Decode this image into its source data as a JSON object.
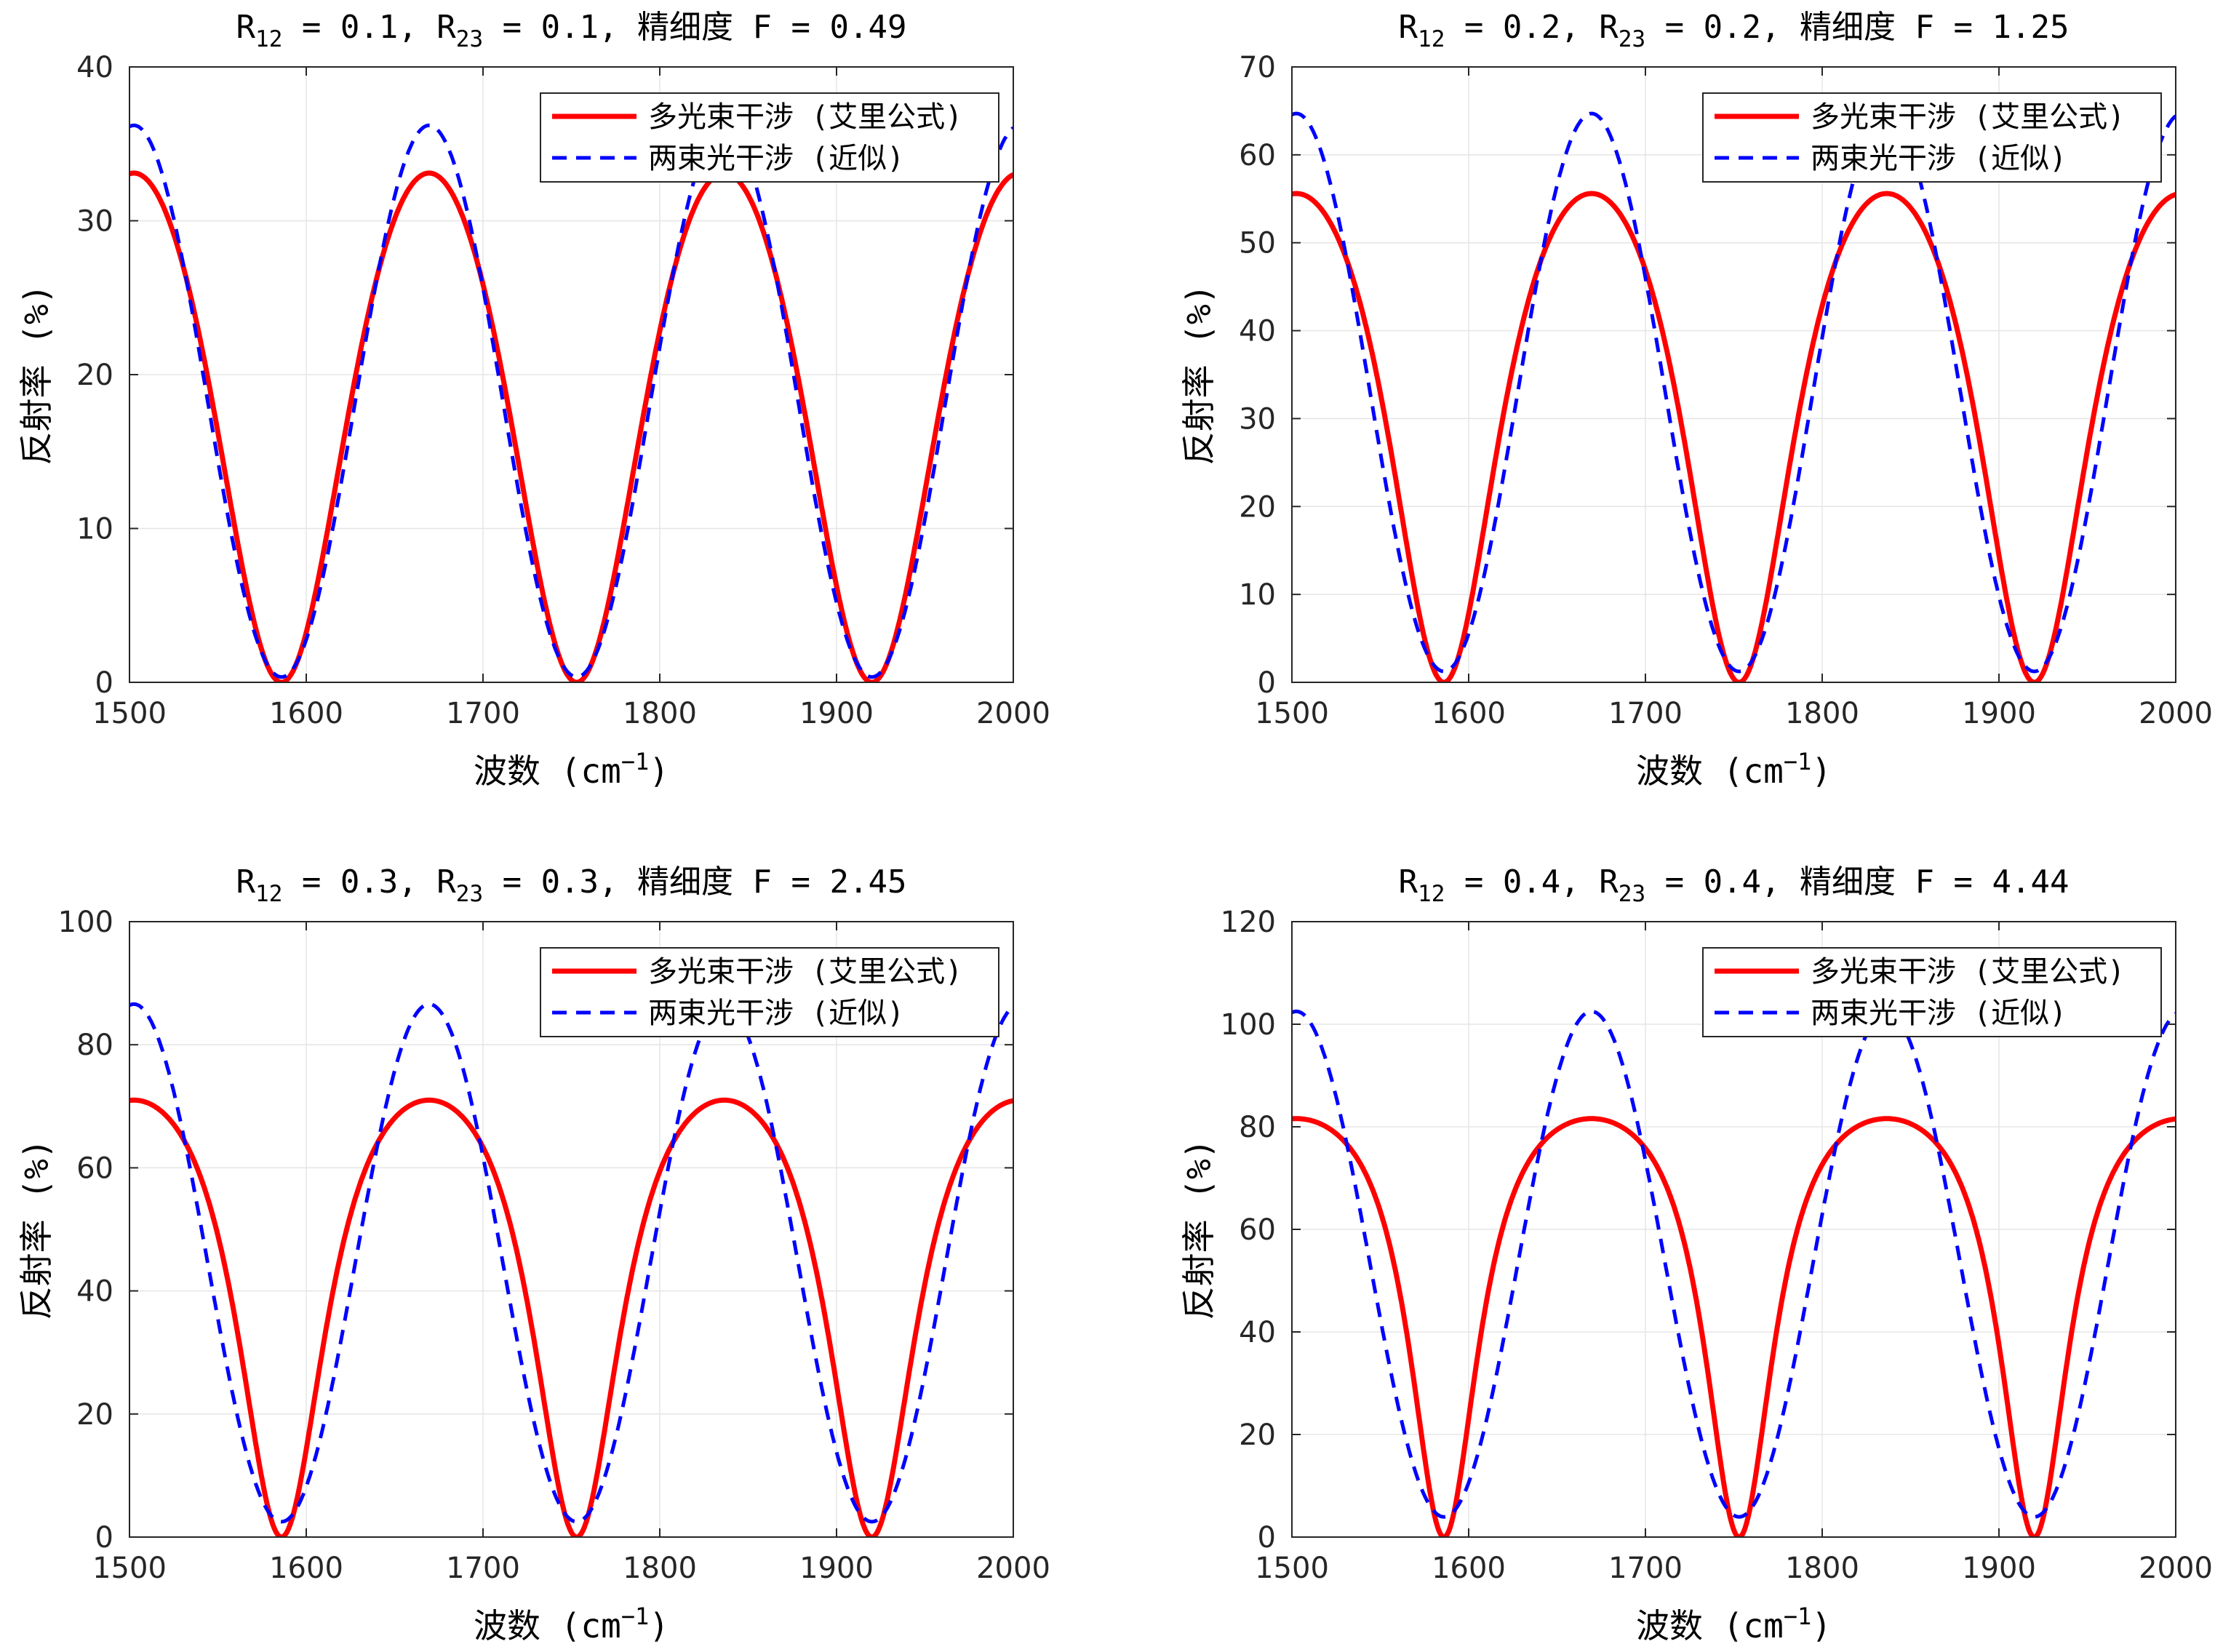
{
  "colors": {
    "multi": "#ff0000",
    "two": "#0000ff",
    "grid": "#e5e5e5",
    "axis": "#262626"
  },
  "chart_data": [
    {
      "type": "line",
      "title": {
        "part1": "R",
        "sub1": "12",
        "part2": " = 0.1, R",
        "sub2": "23",
        "part3": " = 0.1, 精细度 F = 0.49"
      },
      "R12": 0.1,
      "R23": 0.1,
      "finesse": 0.49,
      "xlabel": {
        "main": "波数 (cm",
        "sup": "−1",
        "end": ")"
      },
      "ylabel": "反射率 (%)",
      "xlim": [
        1500,
        2000
      ],
      "ylim": [
        0,
        40
      ],
      "xticks": [
        1500,
        1600,
        1700,
        1800,
        1900,
        2000
      ],
      "yticks": [
        0,
        10,
        20,
        30,
        40
      ],
      "grid": true,
      "legend": "top-right",
      "series": [
        {
          "name": "多光束干涉 (艾里公式)",
          "style": "solid",
          "peak": 33.1,
          "model": "airy"
        },
        {
          "name": "两束光干涉 (近似)",
          "style": "dashed",
          "peak": 36.2,
          "model": "twobeam"
        }
      ],
      "minima": [
        1586,
        1753,
        1920
      ]
    },
    {
      "type": "line",
      "title": {
        "part1": "R",
        "sub1": "12",
        "part2": " = 0.2, R",
        "sub2": "23",
        "part3": " = 0.2, 精细度 F = 1.25"
      },
      "R12": 0.2,
      "R23": 0.2,
      "finesse": 1.25,
      "xlabel": {
        "main": "波数 (cm",
        "sup": "−1",
        "end": ")"
      },
      "ylabel": "反射率 (%)",
      "xlim": [
        1500,
        2000
      ],
      "ylim": [
        0,
        70
      ],
      "xticks": [
        1500,
        1600,
        1700,
        1800,
        1900,
        2000
      ],
      "yticks": [
        0,
        10,
        20,
        30,
        40,
        50,
        60,
        70
      ],
      "grid": true,
      "legend": "top-right",
      "series": [
        {
          "name": "多光束干涉 (艾里公式)",
          "style": "solid",
          "peak": 55.6,
          "model": "airy"
        },
        {
          "name": "两束光干涉 (近似)",
          "style": "dashed",
          "peak": 64.7,
          "model": "twobeam"
        }
      ],
      "minima": [
        1586,
        1753,
        1920
      ]
    },
    {
      "type": "line",
      "title": {
        "part1": "R",
        "sub1": "12",
        "part2": " = 0.3, R",
        "sub2": "23",
        "part3": " = 0.3, 精细度 F = 2.45"
      },
      "R12": 0.3,
      "R23": 0.3,
      "finesse": 2.45,
      "xlabel": {
        "main": "波数 (cm",
        "sup": "−1",
        "end": ")"
      },
      "ylabel": "反射率 (%)",
      "xlim": [
        1500,
        2000
      ],
      "ylim": [
        0,
        100
      ],
      "xticks": [
        1500,
        1600,
        1700,
        1800,
        1900,
        2000
      ],
      "yticks": [
        0,
        20,
        40,
        60,
        80,
        100
      ],
      "grid": true,
      "legend": "top-right",
      "series": [
        {
          "name": "多光束干涉 (艾里公式)",
          "style": "solid",
          "peak": 71.0,
          "model": "airy"
        },
        {
          "name": "两束光干涉 (近似)",
          "style": "dashed",
          "peak": 86.6,
          "model": "twobeam"
        }
      ],
      "minima": [
        1586,
        1753,
        1920
      ]
    },
    {
      "type": "line",
      "title": {
        "part1": "R",
        "sub1": "12",
        "part2": " = 0.4, R",
        "sub2": "23",
        "part3": " = 0.4, 精细度 F = 4.44"
      },
      "R12": 0.4,
      "R23": 0.4,
      "finesse": 4.44,
      "xlabel": {
        "main": "波数 (cm",
        "sup": "−1",
        "end": ")"
      },
      "ylabel": "反射率 (%)",
      "xlim": [
        1500,
        2000
      ],
      "ylim": [
        0,
        120
      ],
      "xticks": [
        1500,
        1600,
        1700,
        1800,
        1900,
        2000
      ],
      "yticks": [
        0,
        20,
        40,
        60,
        80,
        100,
        120
      ],
      "grid": true,
      "legend": "top-right",
      "series": [
        {
          "name": "多光束干涉 (艾里公式)",
          "style": "solid",
          "peak": 81.6,
          "model": "airy"
        },
        {
          "name": "两束光干涉 (近似)",
          "style": "dashed",
          "peak": 102.5,
          "model": "twobeam"
        }
      ],
      "minima": [
        1586,
        1753,
        1920
      ]
    }
  ]
}
